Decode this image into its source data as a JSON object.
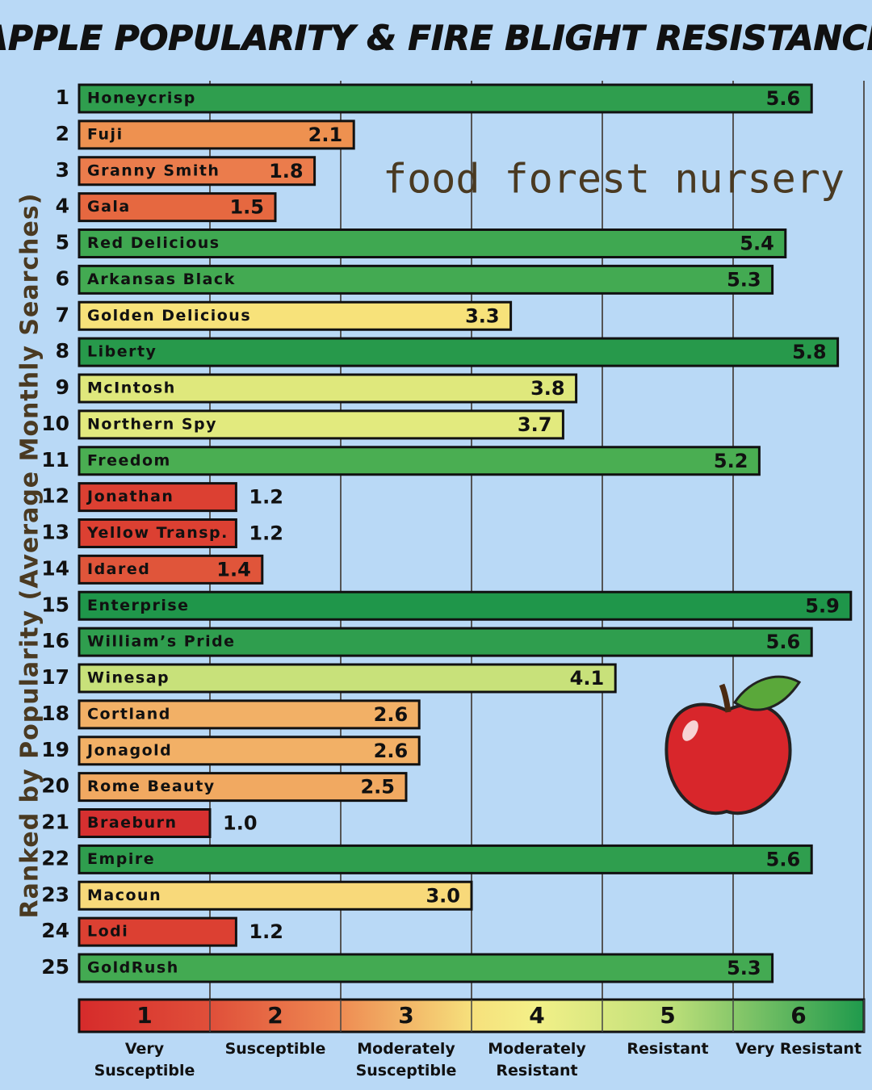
{
  "chart_data": {
    "type": "bar",
    "orientation": "horizontal",
    "title": "APPLE POPULARITY & FIRE BLIGHT RESISTANCE",
    "ylabel": "Ranked by Popularity (Average Monthly Searches)",
    "logo_text": "food forest nursery",
    "ranks": [
      1,
      2,
      3,
      4,
      5,
      6,
      7,
      8,
      9,
      10,
      11,
      12,
      13,
      14,
      15,
      16,
      17,
      18,
      19,
      20,
      21,
      22,
      23,
      24,
      25
    ],
    "categories": [
      "Honeycrisp",
      "Fuji",
      "Granny Smith",
      "Gala",
      "Red Delicious",
      "Arkansas Black",
      "Golden Delicious",
      "Liberty",
      "McIntosh",
      "Northern Spy",
      "Freedom",
      "Jonathan",
      "Yellow Transp.",
      "Idared",
      "Enterprise",
      "William’s Pride",
      "Winesap",
      "Cortland",
      "Jonagold",
      "Rome Beauty",
      "Braeburn",
      "Empire",
      "Macoun",
      "Lodi",
      "GoldRush"
    ],
    "values": [
      5.6,
      2.1,
      1.8,
      1.5,
      5.4,
      5.3,
      3.3,
      5.8,
      3.8,
      3.7,
      5.2,
      1.2,
      1.2,
      1.4,
      5.9,
      5.6,
      4.1,
      2.6,
      2.6,
      2.5,
      1.0,
      5.6,
      3.0,
      1.2,
      5.3
    ],
    "value_labels": [
      "5.6",
      "2.1",
      "1.8",
      "1.5",
      "5.4",
      "5.3",
      "3.3",
      "5.8",
      "3.8",
      "3.7",
      "5.2",
      "1.2",
      "1.2",
      "1.4",
      "5.9",
      "5.6",
      "4.1",
      "2.6",
      "2.6",
      "2.5",
      "1.0",
      "5.6",
      "3.0",
      "1.2",
      "5.3"
    ],
    "colors": [
      "#2f9e4e",
      "#ee9150",
      "#eb7c4c",
      "#e66840",
      "#3fa851",
      "#43aa52",
      "#f7e27a",
      "#27994b",
      "#dfe87c",
      "#e2ea7e",
      "#4aae52",
      "#dc4032",
      "#dc4032",
      "#e0553a",
      "#1f964a",
      "#2f9e4e",
      "#c8e17a",
      "#f2b066",
      "#f2b066",
      "#f1a961",
      "#d63030",
      "#2f9e4e",
      "#f8d97a",
      "#dc4032",
      "#43aa52"
    ],
    "xlim": [
      0,
      6
    ],
    "xticks": [
      1,
      2,
      3,
      4,
      5,
      6
    ],
    "grid": true,
    "scale_labels": [
      "Very Susceptible",
      "Susceptible",
      "Moderately Susceptible",
      "Moderately Resistant",
      "Resistant",
      "Very Resistant"
    ]
  }
}
